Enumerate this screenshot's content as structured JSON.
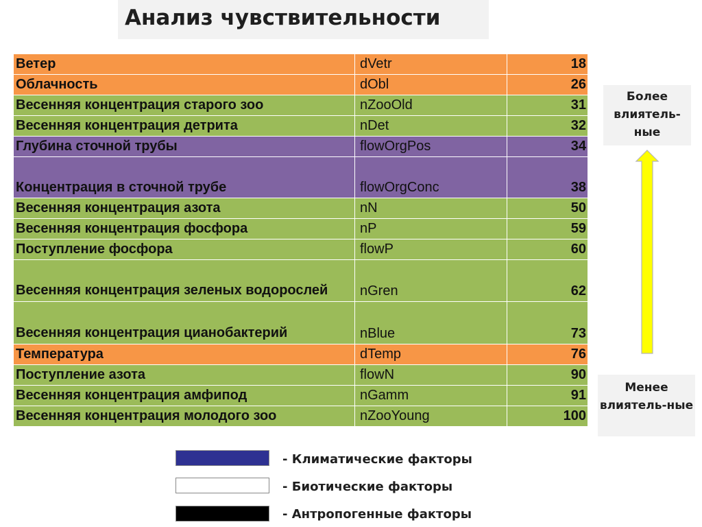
{
  "title": "Анализ чувствительности",
  "colors": {
    "climatic": "#f79646",
    "biotic": "#9bbb59",
    "anthropogenic": "#8064a2",
    "arrow": "#ffff00",
    "legend_climatic": "#2e3192",
    "legend_biotic": "#ffffff",
    "legend_anthropogenic": "#000000"
  },
  "rows": [
    {
      "name": "Ветер",
      "code": "dVetr",
      "value": "18",
      "category": "climatic"
    },
    {
      "name": "Облачность",
      "code": "dObl",
      "value": "26",
      "category": "climatic"
    },
    {
      "name": "Весенняя концентрация старого зоо",
      "code": "nZooOld",
      "value": "31",
      "category": "biotic"
    },
    {
      "name": "Весенняя концентрация детрита",
      "code": "nDet",
      "value": "32",
      "category": "biotic"
    },
    {
      "name": "Глубина сточной трубы",
      "code": "flowOrgPos",
      "value": "34",
      "category": "anthropogenic"
    },
    {
      "name": "Концентрация в сточной трубе",
      "code": "flowOrgConc",
      "value": "38",
      "category": "anthropogenic"
    },
    {
      "name": "Весенняя концентрация азота",
      "code": "nN",
      "value": "50",
      "category": "biotic"
    },
    {
      "name": "Весенняя концентрация фосфора",
      "code": "nP",
      "value": "59",
      "category": "biotic"
    },
    {
      "name": "Поступление фосфора",
      "code": "flowP",
      "value": "60",
      "category": "biotic"
    },
    {
      "name": "Весенняя концентрация зеленых водорослей",
      "code": "nGren",
      "value": "62",
      "category": "biotic"
    },
    {
      "name": "Весенняя концентрация цианобактерий",
      "code": "nBlue",
      "value": "73",
      "category": "biotic"
    },
    {
      "name": "Температура",
      "code": "dTemp",
      "value": "76",
      "category": "climatic"
    },
    {
      "name": "Поступление азота",
      "code": "flowN",
      "value": "90",
      "category": "biotic"
    },
    {
      "name": "Весенняя концентрация амфипод",
      "code": "nGamm",
      "value": "91",
      "category": "biotic"
    },
    {
      "name": "Весенняя концентрация молодого зоо",
      "code": "nZooYoung",
      "value": "100",
      "category": "biotic"
    }
  ],
  "scale": {
    "top_label": "Более влиятель-ные",
    "bottom_label": "Менее влиятель-ные"
  },
  "legend": [
    {
      "text": "- Климатические факторы",
      "color_key": "legend_climatic"
    },
    {
      "text": "- Биотические факторы",
      "color_key": "legend_biotic"
    },
    {
      "text": "- Антропогенные факторы",
      "color_key": "legend_anthropogenic"
    }
  ]
}
